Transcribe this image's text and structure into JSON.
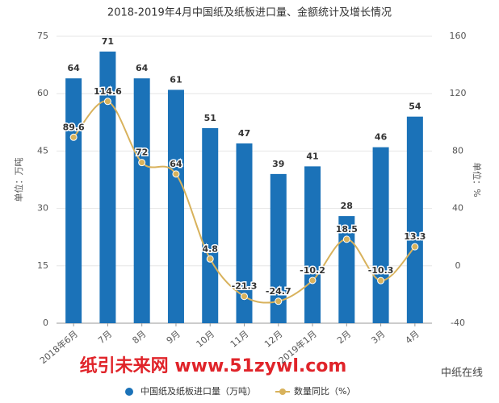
{
  "chart_data": {
    "type": "bar",
    "title": "2018-2019年4月中国纸及纸板进口量、金额统计及增长情况",
    "y_label": "单位：万吨",
    "y2_label": "单位：%",
    "categories": [
      "2018年6月",
      "7月",
      "8月",
      "9月",
      "10月",
      "11月",
      "12月",
      "2019年1月",
      "2月",
      "3月",
      "4月"
    ],
    "series": [
      {
        "name": "中国纸及纸板进口量（万吨）",
        "type": "bar",
        "color": "#1b72b8",
        "values": [
          64,
          71,
          64,
          61,
          51,
          47,
          39,
          41,
          28,
          46,
          54
        ]
      },
      {
        "name": "数量同比（%）",
        "type": "line",
        "axis": "y2",
        "color": "#d8b25c",
        "values": [
          89.6,
          114.6,
          72,
          64,
          4.8,
          -21.3,
          -24.7,
          -10.2,
          18.5,
          -10.3,
          13.3
        ]
      }
    ],
    "ylim": [
      0,
      75
    ],
    "yticks": [
      0,
      15,
      30,
      45,
      60,
      75
    ],
    "y2lim": [
      -40,
      160
    ],
    "y2ticks": [
      -40,
      0,
      40,
      80,
      120,
      160
    ],
    "legend": "bottom",
    "watermark": "纸引未来网 www.51zywl.com",
    "source": "中纸在线"
  }
}
